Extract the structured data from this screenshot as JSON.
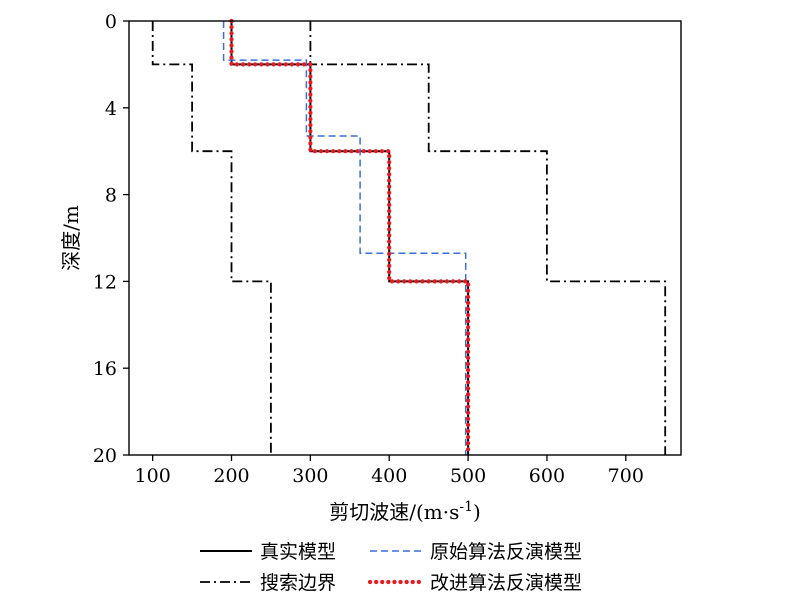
{
  "chart_data": {
    "type": "line",
    "xlabel": "剪切波速/(m·s",
    "xlabel_superscript": "-1",
    "xlabel_close": ")",
    "ylabel": "深度/m",
    "xlim": [
      70,
      770
    ],
    "ylim": [
      0,
      20
    ],
    "y_inverted": true,
    "x_axis_position": "bottom",
    "y_axis_position": "left",
    "grid": false,
    "legend_position": "bottom",
    "x_ticks": [
      100,
      200,
      300,
      400,
      500,
      600,
      700
    ],
    "y_ticks": [
      0,
      4,
      8,
      12,
      16,
      20
    ],
    "series": [
      {
        "name": "真实模型",
        "style": "solid",
        "color": "#000000",
        "points": [
          [
            200,
            0
          ],
          [
            200,
            2
          ],
          [
            300,
            2
          ],
          [
            300,
            6
          ],
          [
            400,
            6
          ],
          [
            400,
            12
          ],
          [
            500,
            12
          ],
          [
            500,
            20
          ]
        ]
      },
      {
        "name": "原始算法反演模型",
        "style": "dashed",
        "color": "#3a6fd8",
        "points": [
          [
            190,
            0
          ],
          [
            190,
            1.8
          ],
          [
            295,
            1.8
          ],
          [
            295,
            5.3
          ],
          [
            363,
            5.3
          ],
          [
            363,
            10.7
          ],
          [
            497,
            10.7
          ],
          [
            497,
            20
          ]
        ]
      },
      {
        "name": "搜索边界",
        "style": "dashdot",
        "color": "#000000",
        "points": [
          [
            100,
            0
          ],
          [
            100,
            2
          ],
          [
            150,
            2
          ],
          [
            150,
            6
          ],
          [
            200,
            6
          ],
          [
            200,
            12
          ],
          [
            250,
            12
          ],
          [
            250,
            20
          ]
        ]
      },
      {
        "name": "搜索边界",
        "style": "dashdot",
        "color": "#000000",
        "legend": false,
        "points": [
          [
            300,
            0
          ],
          [
            300,
            2
          ],
          [
            450,
            2
          ],
          [
            450,
            6
          ],
          [
            600,
            6
          ],
          [
            600,
            12
          ],
          [
            750,
            12
          ],
          [
            750,
            20
          ]
        ]
      },
      {
        "name": "改进算法反演模型",
        "style": "dotted",
        "color": "#e8191f",
        "points": [
          [
            200,
            0
          ],
          [
            200,
            2
          ],
          [
            300,
            2
          ],
          [
            300,
            6
          ],
          [
            400,
            6
          ],
          [
            400,
            12
          ],
          [
            500,
            12
          ],
          [
            500,
            20
          ]
        ]
      }
    ],
    "legend": [
      {
        "label": "真实模型",
        "style": "solid",
        "color": "#000000"
      },
      {
        "label": "原始算法反演模型",
        "style": "dashed",
        "color": "#3a6fd8"
      },
      {
        "label": "搜索边界",
        "style": "dashdot",
        "color": "#000000"
      },
      {
        "label": "改进算法反演模型",
        "style": "dotted",
        "color": "#e8191f"
      }
    ]
  }
}
